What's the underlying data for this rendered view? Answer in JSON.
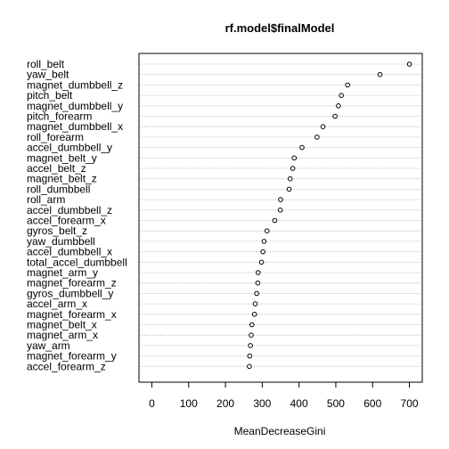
{
  "chart_data": {
    "type": "scatter",
    "title": "rf.model$finalModel",
    "xlabel": "MeanDecreaseGini",
    "ylabel": "",
    "xlim": [
      -35,
      735
    ],
    "xticks": [
      0,
      100,
      200,
      300,
      400,
      500,
      600,
      700
    ],
    "grid": "horizontal dotted",
    "legend": "none",
    "categories": [
      "roll_belt",
      "yaw_belt",
      "magnet_dumbbell_z",
      "pitch_belt",
      "magnet_dumbbell_y",
      "pitch_forearm",
      "magnet_dumbbell_x",
      "roll_forearm",
      "accel_dumbbell_y",
      "magnet_belt_y",
      "accel_belt_z",
      "magnet_belt_z",
      "roll_dumbbell",
      "roll_arm",
      "accel_dumbbell_z",
      "accel_forearm_x",
      "gyros_belt_z",
      "yaw_dumbbell",
      "accel_dumbbell_x",
      "total_accel_dumbbell",
      "magnet_arm_y",
      "magnet_forearm_z",
      "gyros_dumbbell_y",
      "accel_arm_x",
      "magnet_forearm_x",
      "magnet_belt_x",
      "magnet_arm_x",
      "yaw_arm",
      "magnet_forearm_y",
      "accel_forearm_z"
    ],
    "values": [
      700,
      620,
      532,
      515,
      507,
      498,
      465,
      449,
      408,
      387,
      383,
      376,
      373,
      350,
      349,
      334,
      313,
      305,
      302,
      298,
      289,
      288,
      285,
      281,
      279,
      272,
      270,
      268,
      266,
      265
    ]
  }
}
